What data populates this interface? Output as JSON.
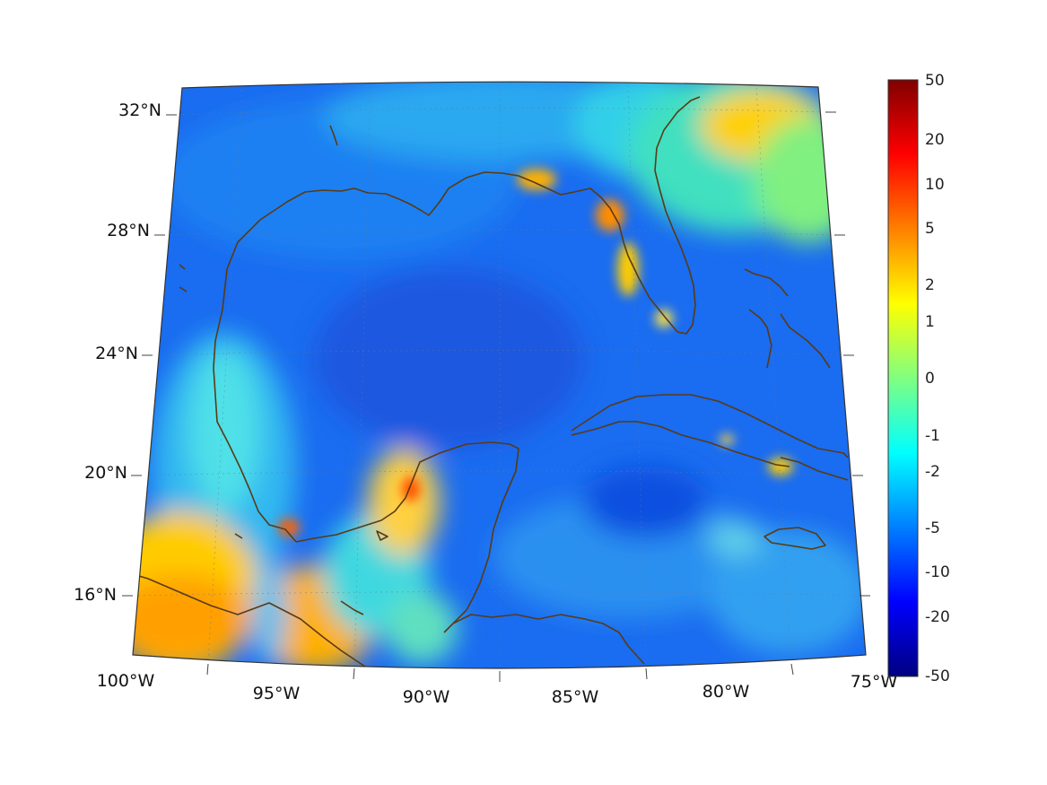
{
  "map": {
    "region": "Gulf of Mexico and western Caribbean",
    "projection": "conic",
    "lon_range": [
      -100,
      -75
    ],
    "lat_range": [
      14,
      33
    ],
    "latitude_labels": [
      "32°N",
      "28°N",
      "24°N",
      "20°N",
      "16°N"
    ],
    "longitude_labels": [
      "100°W",
      "95°W",
      "90°W",
      "85°W",
      "80°W",
      "75°W"
    ],
    "coastline_color": "#5a3a14",
    "graticule": "dotted"
  },
  "colorbar": {
    "colormap": "jet",
    "tick_labels": [
      "50",
      "20",
      "10",
      "5",
      "2",
      "1",
      "0",
      "-1",
      "-2",
      "-5",
      "-10",
      "-20",
      "-50"
    ],
    "range": [
      -50,
      50
    ]
  }
}
